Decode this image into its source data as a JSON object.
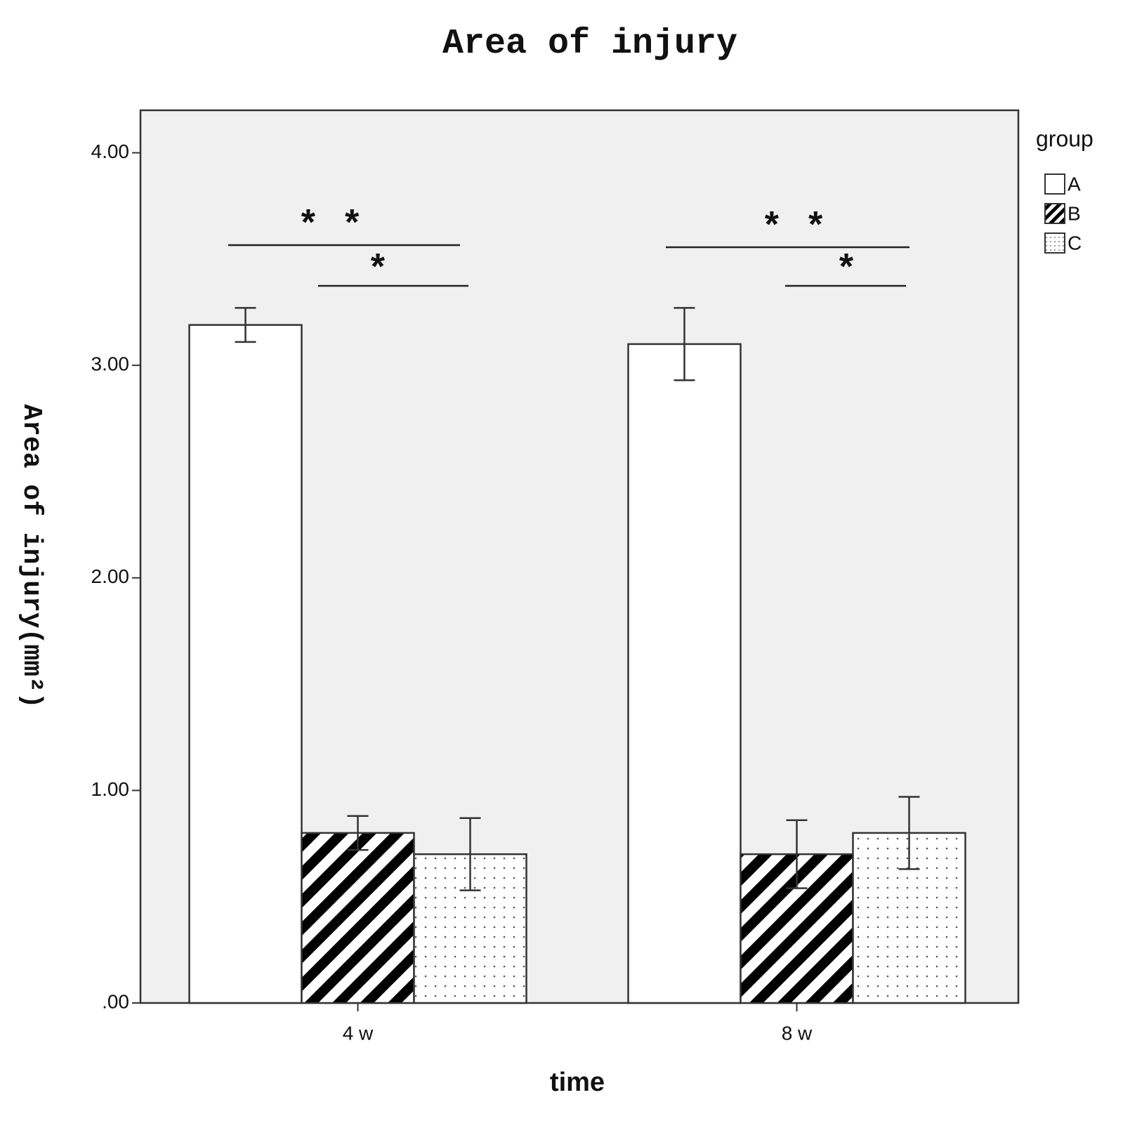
{
  "chart_data": {
    "type": "bar",
    "title": "Area of injury",
    "y_label": "Area of injury(mm²)",
    "x_label": "time",
    "legend_title": "group",
    "categories": [
      "4 w",
      "8 w"
    ],
    "series": [
      {
        "name": "A",
        "color": "#ffffff",
        "pattern": "none",
        "values": [
          3.19,
          3.1
        ],
        "errors": [
          0.08,
          0.17
        ]
      },
      {
        "name": "B",
        "color": "#000000",
        "pattern": "hatch",
        "values": [
          0.8,
          0.7
        ],
        "errors": [
          0.08,
          0.16
        ]
      },
      {
        "name": "C",
        "color": "#000000",
        "pattern": "dots",
        "values": [
          0.7,
          0.8
        ],
        "errors": [
          0.17,
          0.17
        ]
      }
    ],
    "annotations": [
      "* *",
      "*",
      "* *",
      "*"
    ],
    "ylim": [
      0,
      4.2
    ],
    "yticks": [
      {
        "value": 0,
        "label": ".00"
      },
      {
        "value": 1,
        "label": "1.00"
      },
      {
        "value": 2,
        "label": "2.00"
      },
      {
        "value": 3,
        "label": "3.00"
      },
      {
        "value": 4,
        "label": "4.00"
      }
    ],
    "legend": "right",
    "background": "#f0f0f0"
  }
}
